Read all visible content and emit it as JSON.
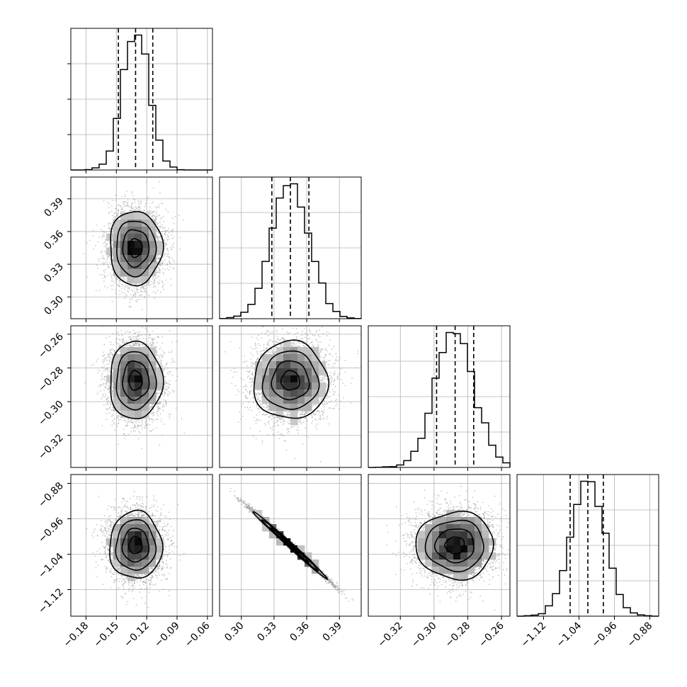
{
  "chart_data": {
    "type": "corner",
    "grid": true,
    "params": [
      {
        "range": [
          -0.195,
          -0.055
        ],
        "ticks": [
          -0.18,
          -0.15,
          -0.12,
          -0.09,
          -0.06
        ],
        "tick_labels": [
          "−0.18",
          "−0.15",
          "−0.12",
          "−0.09",
          "−0.06"
        ],
        "mean": -0.131,
        "sd": 0.013,
        "quantiles": [
          -0.148,
          -0.131,
          -0.114
        ]
      },
      {
        "range": [
          0.28,
          0.41
        ],
        "ticks": [
          0.3,
          0.33,
          0.36,
          0.39
        ],
        "tick_labels": [
          "0.30",
          "0.33",
          "0.36",
          "0.39"
        ],
        "mean": 0.345,
        "sd": 0.017,
        "quantiles": [
          0.328,
          0.345,
          0.362
        ]
      },
      {
        "range": [
          -0.339,
          -0.255
        ],
        "ticks": [
          -0.32,
          -0.3,
          -0.28,
          -0.26
        ],
        "tick_labels": [
          "−0.32",
          "−0.30",
          "−0.28",
          "−0.26"
        ],
        "mean": -0.2875,
        "sd": 0.0115,
        "quantiles": [
          -0.2985,
          -0.2875,
          -0.2765
        ]
      },
      {
        "range": [
          -1.18,
          -0.86
        ],
        "ticks": [
          -1.12,
          -1.04,
          -0.96,
          -0.88
        ],
        "tick_labels": [
          "−1.12",
          "−1.04",
          "−0.96",
          "−0.88"
        ],
        "mean": -1.02,
        "sd": 0.038,
        "quantiles": [
          -1.06,
          -1.02,
          -0.985
        ]
      }
    ],
    "correlations": {
      "3-1": -0.995
    }
  }
}
